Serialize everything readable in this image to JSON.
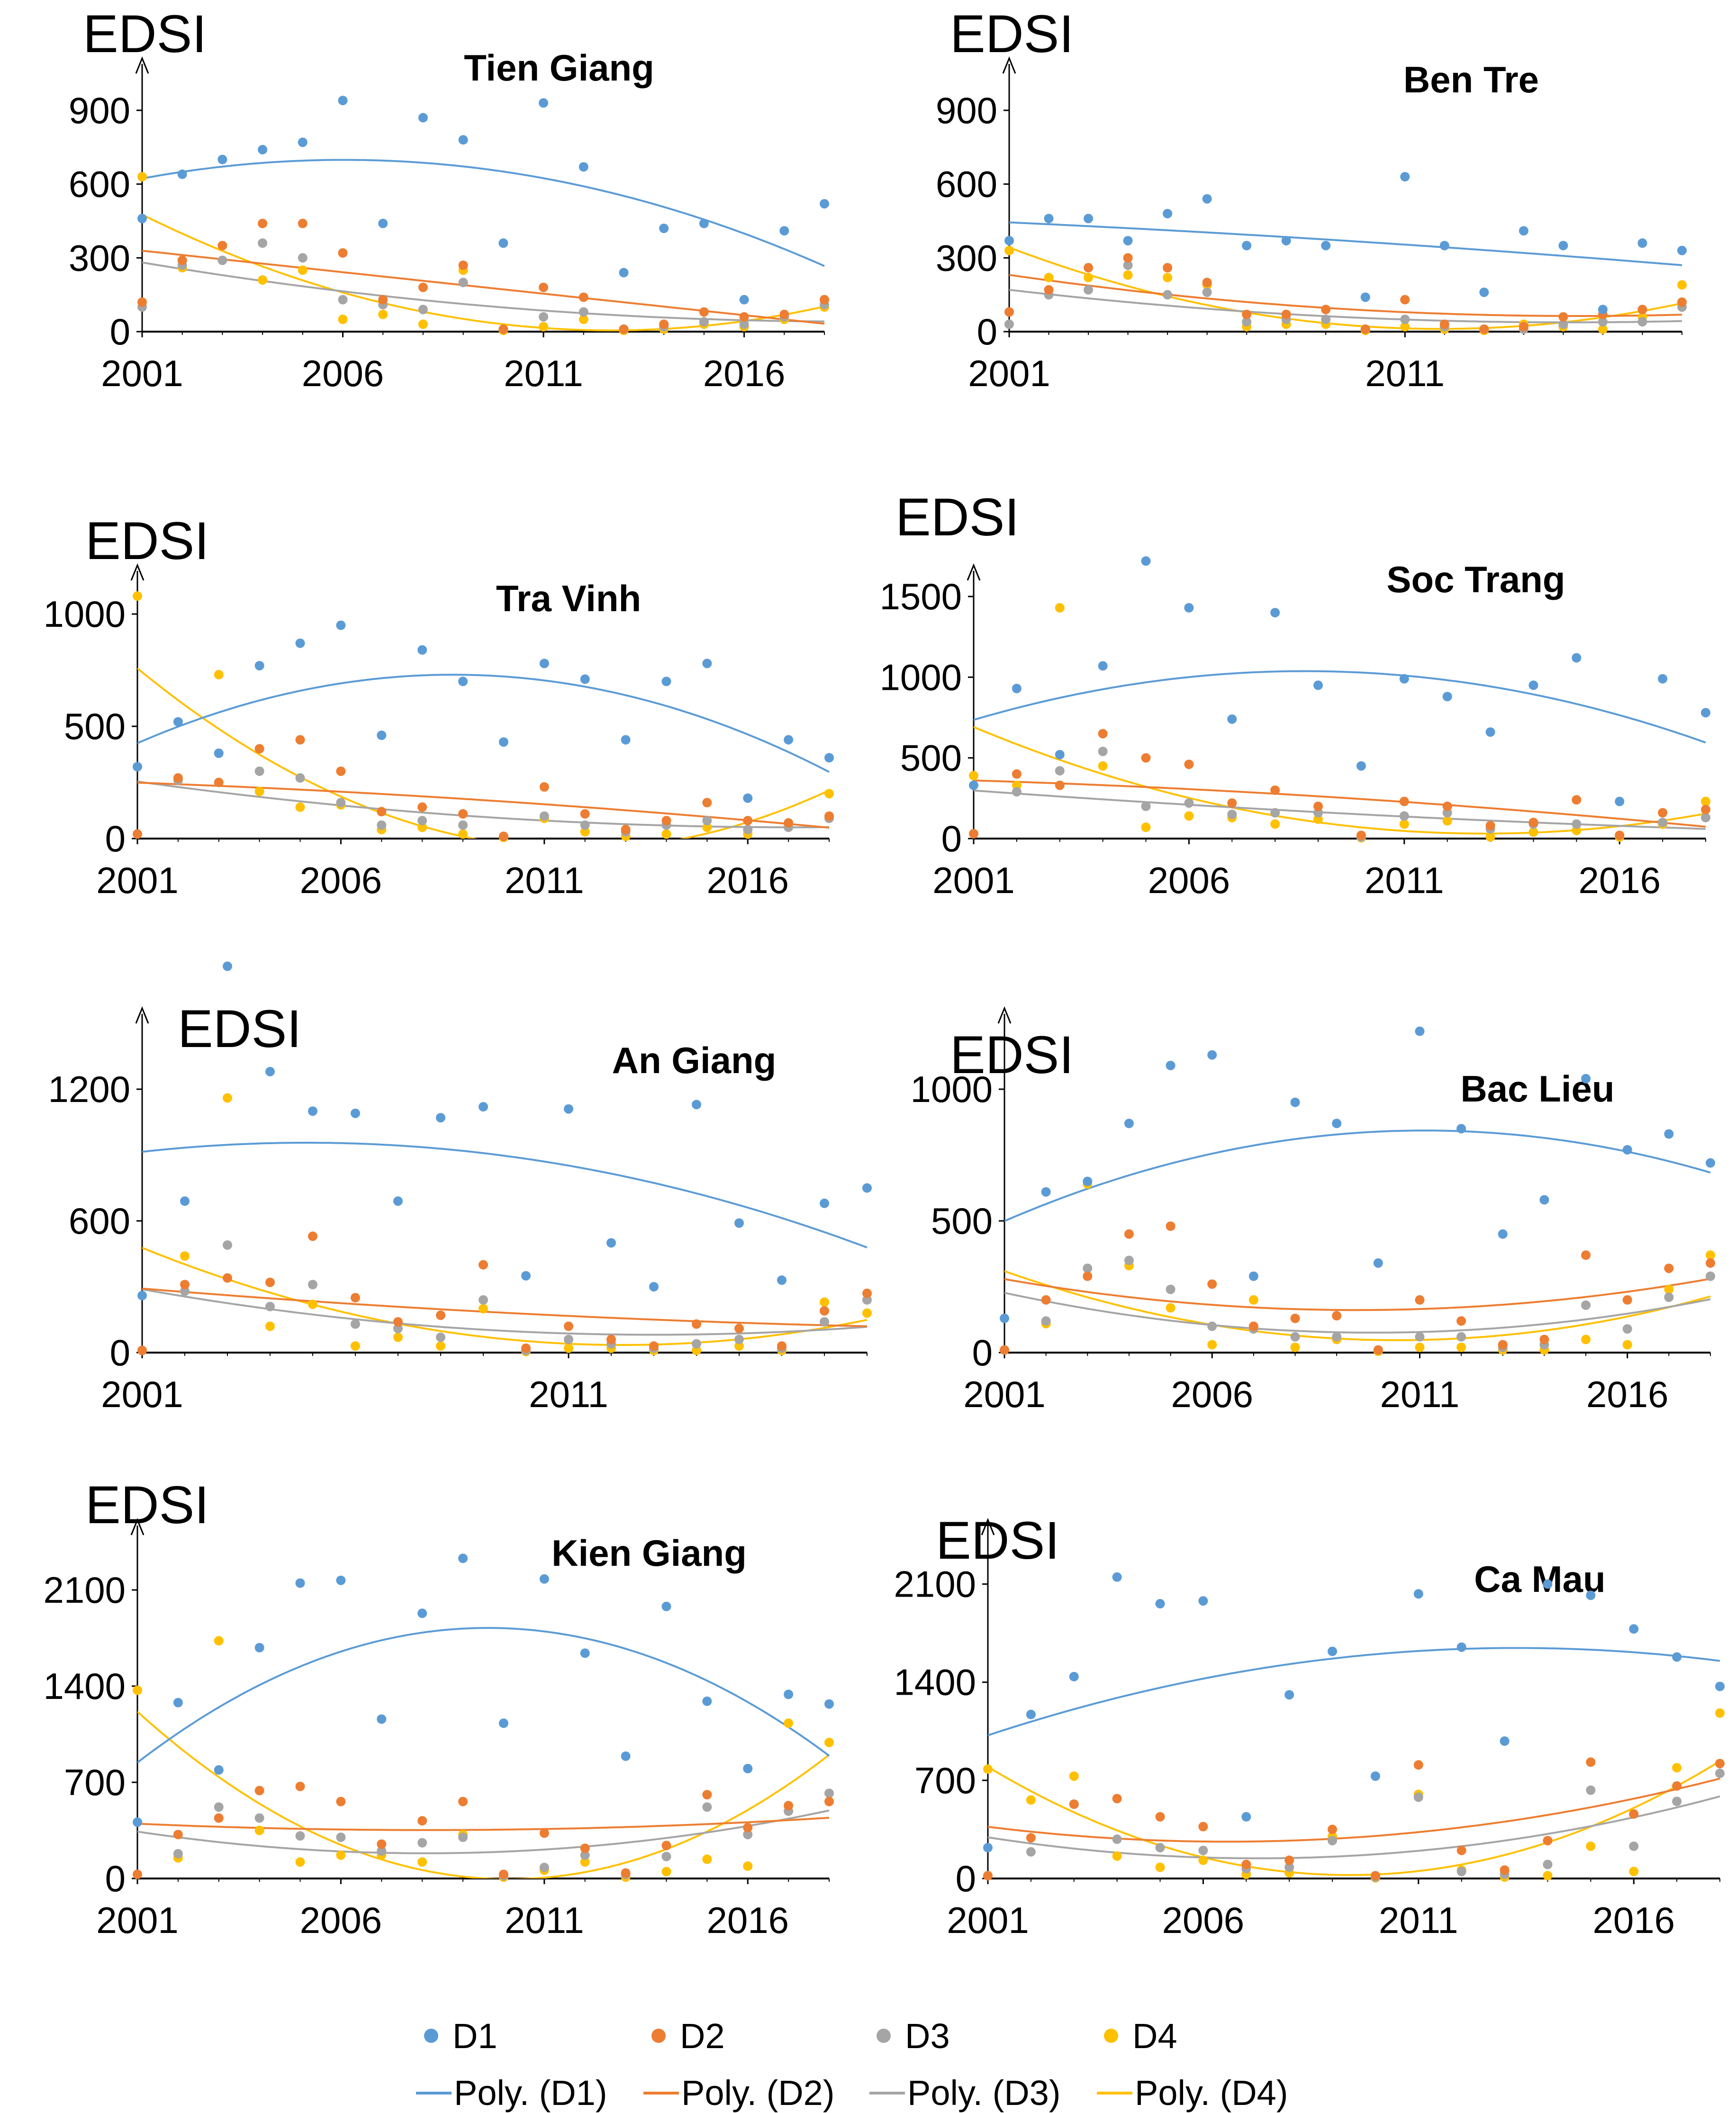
{
  "series_colors": {
    "D1": "#5B9BD5",
    "D2": "#ED7D31",
    "D3": "#A5A5A5",
    "D4": "#FFC000"
  },
  "legend": {
    "points": [
      "D1",
      "D2",
      "D3",
      "D4"
    ],
    "lines": [
      "Poly. (D1)",
      "Poly. (D2)",
      "Poly. (D3)",
      "Poly. (D4)"
    ]
  },
  "chart_data": [
    {
      "type": "scatter",
      "title": "Tien Giang",
      "ylabel": "EDSI",
      "xlim": [
        2001,
        2018
      ],
      "ylim": [
        0,
        1050
      ],
      "xticks": [
        "2001",
        "2006",
        "2011",
        "2016"
      ],
      "yticks": [
        "0",
        "300",
        "600",
        "900"
      ],
      "x": [
        2001,
        2002,
        2003,
        2004,
        2005,
        2006,
        2007,
        2008,
        2009,
        2010,
        2011,
        2012,
        2013,
        2014,
        2015,
        2016,
        2017,
        2018
      ],
      "series": [
        {
          "name": "D1",
          "values": [
            460,
            640,
            700,
            740,
            770,
            940,
            440,
            870,
            780,
            360,
            930,
            670,
            240,
            420,
            440,
            130,
            410,
            520
          ]
        },
        {
          "name": "D2",
          "values": [
            120,
            290,
            350,
            440,
            440,
            320,
            130,
            180,
            270,
            10,
            180,
            140,
            10,
            30,
            80,
            60,
            70,
            130
          ]
        },
        {
          "name": "D3",
          "values": [
            100,
            270,
            290,
            360,
            300,
            130,
            110,
            90,
            200,
            10,
            60,
            80,
            10,
            20,
            40,
            30,
            60,
            110
          ]
        },
        {
          "name": "D4",
          "values": [
            630,
            260,
            350,
            210,
            250,
            50,
            70,
            30,
            250,
            5,
            20,
            50,
            5,
            10,
            30,
            20,
            50,
            100
          ]
        }
      ]
    },
    {
      "type": "scatter",
      "title": "Ben Tre",
      "ylabel": "EDSI",
      "xlim": [
        2001,
        2018
      ],
      "ylim": [
        0,
        1050
      ],
      "xticks": [
        "2001",
        "2011"
      ],
      "yticks": [
        "0",
        "300",
        "600",
        "900"
      ],
      "x": [
        2001,
        2002,
        2003,
        2004,
        2005,
        2006,
        2007,
        2008,
        2009,
        2010,
        2011,
        2012,
        2013,
        2014,
        2015,
        2016,
        2017,
        2018
      ],
      "series": [
        {
          "name": "D1",
          "values": [
            370,
            460,
            460,
            370,
            480,
            540,
            350,
            370,
            350,
            140,
            630,
            350,
            160,
            410,
            350,
            90,
            360,
            330
          ]
        },
        {
          "name": "D2",
          "values": [
            80,
            170,
            260,
            300,
            260,
            200,
            70,
            70,
            90,
            10,
            130,
            30,
            10,
            20,
            60,
            70,
            90,
            120
          ]
        },
        {
          "name": "D3",
          "values": [
            30,
            150,
            170,
            270,
            150,
            160,
            40,
            50,
            50,
            10,
            50,
            20,
            10,
            10,
            30,
            40,
            40,
            100
          ]
        },
        {
          "name": "D4",
          "values": [
            330,
            220,
            220,
            230,
            220,
            190,
            20,
            30,
            30,
            5,
            20,
            10,
            5,
            30,
            20,
            10,
            60,
            190
          ]
        }
      ]
    },
    {
      "type": "scatter",
      "title": "Tra Vinh",
      "ylabel": "EDSI",
      "xlim": [
        2001,
        2018
      ],
      "ylim": [
        0,
        1150
      ],
      "xticks": [
        "2001",
        "2006",
        "2011",
        "2016"
      ],
      "yticks": [
        "0",
        "500",
        "1000"
      ],
      "x": [
        2001,
        2002,
        2003,
        2004,
        2005,
        2006,
        2007,
        2008,
        2009,
        2010,
        2011,
        2012,
        2013,
        2014,
        2015,
        2016,
        2017,
        2018
      ],
      "series": [
        {
          "name": "D1",
          "values": [
            320,
            520,
            380,
            770,
            870,
            950,
            460,
            840,
            700,
            430,
            780,
            710,
            440,
            700,
            780,
            180,
            440,
            360
          ]
        },
        {
          "name": "D2",
          "values": [
            20,
            270,
            250,
            400,
            440,
            300,
            120,
            140,
            110,
            10,
            230,
            110,
            40,
            80,
            160,
            80,
            70,
            100
          ]
        },
        {
          "name": "D3",
          "values": [
            20,
            260,
            380,
            300,
            270,
            160,
            60,
            80,
            60,
            10,
            100,
            60,
            30,
            60,
            80,
            40,
            50,
            90
          ]
        },
        {
          "name": "D4",
          "values": [
            1080,
            260,
            730,
            210,
            140,
            150,
            40,
            50,
            20,
            5,
            90,
            30,
            10,
            20,
            50,
            20,
            60,
            200
          ]
        }
      ]
    },
    {
      "type": "scatter",
      "title": "Soc Trang",
      "ylabel": "EDSI",
      "xlim": [
        2001,
        2018
      ],
      "ylim": [
        0,
        1600
      ],
      "xticks": [
        "2001",
        "2006",
        "2011",
        "2016"
      ],
      "yticks": [
        "0",
        "500",
        "1000",
        "1500"
      ],
      "x": [
        2001,
        2002,
        2003,
        2004,
        2005,
        2006,
        2007,
        2008,
        2009,
        2010,
        2011,
        2012,
        2013,
        2014,
        2015,
        2016,
        2017,
        2018
      ],
      "series": [
        {
          "name": "D1",
          "values": [
            330,
            930,
            520,
            1070,
            1720,
            1430,
            740,
            1400,
            950,
            450,
            990,
            880,
            660,
            950,
            1120,
            230,
            990,
            780
          ]
        },
        {
          "name": "D2",
          "values": [
            30,
            400,
            330,
            650,
            500,
            460,
            220,
            300,
            200,
            20,
            230,
            200,
            80,
            100,
            240,
            20,
            160,
            180
          ]
        },
        {
          "name": "D3",
          "values": [
            30,
            290,
            420,
            540,
            200,
            220,
            150,
            160,
            160,
            10,
            140,
            160,
            60,
            90,
            90,
            20,
            100,
            130
          ]
        },
        {
          "name": "D4",
          "values": [
            390,
            330,
            1430,
            450,
            70,
            140,
            130,
            90,
            120,
            5,
            90,
            110,
            10,
            40,
            50,
            10,
            90,
            230
          ]
        }
      ]
    },
    {
      "type": "scatter",
      "title": "An Giang",
      "ylabel": "EDSI",
      "xlim": [
        2001,
        2018
      ],
      "ylim": [
        0,
        1500
      ],
      "xticks": [
        "2001",
        "2011"
      ],
      "yticks": [
        "0",
        "600",
        "1200"
      ],
      "x": [
        2001,
        2002,
        2003,
        2004,
        2005,
        2006,
        2007,
        2008,
        2009,
        2010,
        2011,
        2012,
        2013,
        2014,
        2015,
        2016,
        2017,
        2018
      ],
      "series": [
        {
          "name": "D1",
          "values": [
            260,
            690,
            1760,
            1280,
            1100,
            1090,
            690,
            1070,
            1120,
            350,
            1110,
            500,
            300,
            1130,
            590,
            330,
            680,
            750
          ]
        },
        {
          "name": "D2",
          "values": [
            10,
            310,
            340,
            320,
            530,
            250,
            140,
            170,
            400,
            20,
            120,
            60,
            30,
            130,
            110,
            30,
            190,
            270
          ]
        },
        {
          "name": "D3",
          "values": [
            10,
            280,
            490,
            210,
            310,
            130,
            110,
            70,
            240,
            10,
            60,
            40,
            20,
            40,
            60,
            20,
            140,
            240
          ]
        },
        {
          "name": "D4",
          "values": [
            10,
            440,
            1160,
            120,
            220,
            30,
            70,
            30,
            200,
            5,
            20,
            20,
            10,
            10,
            30,
            10,
            230,
            180
          ]
        }
      ]
    },
    {
      "type": "scatter",
      "title": "Bac Lieu",
      "ylabel": "EDSI",
      "xlim": [
        2001,
        2018
      ],
      "ylim": [
        0,
        1250
      ],
      "xticks": [
        "2001",
        "2006",
        "2011",
        "2016"
      ],
      "yticks": [
        "0",
        "500",
        "1000"
      ],
      "x": [
        2001,
        2002,
        2003,
        2004,
        2005,
        2006,
        2007,
        2008,
        2009,
        2010,
        2011,
        2012,
        2013,
        2014,
        2015,
        2016,
        2017,
        2018
      ],
      "series": [
        {
          "name": "D1",
          "values": [
            130,
            610,
            650,
            870,
            1090,
            1130,
            290,
            950,
            870,
            340,
            1220,
            850,
            450,
            580,
            1040,
            770,
            830,
            720
          ]
        },
        {
          "name": "D2",
          "values": [
            10,
            200,
            290,
            450,
            480,
            260,
            100,
            130,
            140,
            10,
            200,
            120,
            30,
            50,
            370,
            200,
            320,
            340
          ]
        },
        {
          "name": "D3",
          "values": [
            10,
            120,
            320,
            350,
            240,
            100,
            90,
            60,
            60,
            10,
            60,
            60,
            20,
            30,
            180,
            90,
            210,
            290
          ]
        },
        {
          "name": "D4",
          "values": [
            10,
            110,
            640,
            330,
            170,
            30,
            200,
            20,
            50,
            5,
            20,
            20,
            10,
            10,
            50,
            30,
            240,
            370
          ]
        }
      ]
    },
    {
      "type": "scatter",
      "title": "Kien Giang",
      "ylabel": "EDSI",
      "xlim": [
        2001,
        2018
      ],
      "ylim": [
        0,
        2500
      ],
      "xticks": [
        "2001",
        "2006",
        "2011",
        "2016"
      ],
      "yticks": [
        "0",
        "700",
        "1400",
        "2100"
      ],
      "x": [
        2001,
        2002,
        2003,
        2004,
        2005,
        2006,
        2007,
        2008,
        2009,
        2010,
        2011,
        2012,
        2013,
        2014,
        2015,
        2016,
        2017,
        2018
      ],
      "series": [
        {
          "name": "D1",
          "values": [
            410,
            1280,
            790,
            1680,
            2150,
            2170,
            1160,
            1930,
            2330,
            1130,
            2180,
            1640,
            890,
            1980,
            1290,
            800,
            1340,
            1270
          ]
        },
        {
          "name": "D2",
          "values": [
            30,
            320,
            440,
            640,
            670,
            560,
            250,
            420,
            560,
            30,
            330,
            220,
            40,
            240,
            610,
            370,
            530,
            560
          ]
        },
        {
          "name": "D3",
          "values": [
            30,
            180,
            520,
            440,
            310,
            300,
            200,
            260,
            300,
            20,
            80,
            170,
            30,
            160,
            520,
            320,
            490,
            620
          ]
        },
        {
          "name": "D4",
          "values": [
            1370,
            150,
            1730,
            350,
            120,
            170,
            170,
            120,
            320,
            10,
            60,
            120,
            10,
            50,
            140,
            90,
            1130,
            990
          ]
        }
      ]
    },
    {
      "type": "scatter",
      "title": "Ca Mau",
      "ylabel": "EDSI",
      "xlim": [
        2001,
        2018
      ],
      "ylim": [
        0,
        2450
      ],
      "xticks": [
        "2001",
        "2006",
        "2011",
        "2016"
      ],
      "yticks": [
        "0",
        "700",
        "1400",
        "2100"
      ],
      "x": [
        2001,
        2002,
        2003,
        2004,
        2005,
        2006,
        2007,
        2008,
        2009,
        2010,
        2011,
        2012,
        2013,
        2014,
        2015,
        2016,
        2017,
        2018
      ],
      "series": [
        {
          "name": "D1",
          "values": [
            220,
            1170,
            1440,
            2150,
            1960,
            1980,
            440,
            1310,
            1620,
            730,
            2030,
            1650,
            980,
            2100,
            2020,
            1780,
            1580,
            1370
          ]
        },
        {
          "name": "D2",
          "values": [
            20,
            290,
            530,
            570,
            440,
            370,
            100,
            130,
            350,
            20,
            810,
            200,
            60,
            270,
            830,
            460,
            660,
            820
          ]
        },
        {
          "name": "D3",
          "values": [
            20,
            190,
            530,
            280,
            220,
            200,
            70,
            80,
            270,
            10,
            580,
            50,
            30,
            100,
            630,
            230,
            550,
            750
          ]
        },
        {
          "name": "D4",
          "values": [
            780,
            560,
            730,
            160,
            80,
            130,
            30,
            40,
            300,
            5,
            600,
            60,
            10,
            20,
            230,
            50,
            790,
            1180
          ]
        }
      ]
    }
  ]
}
